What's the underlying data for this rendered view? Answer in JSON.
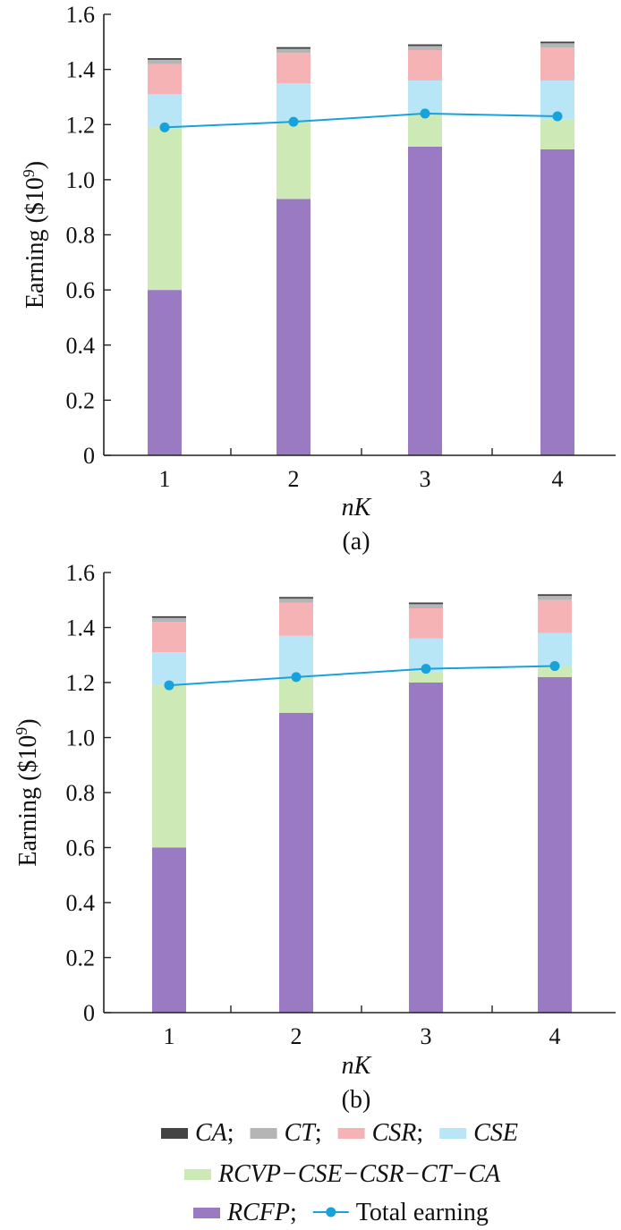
{
  "chart_data": [
    {
      "type": "bar",
      "stacked": true,
      "panel_label": "(a)",
      "categories": [
        "1",
        "2",
        "3",
        "4"
      ],
      "xlabel": "nK",
      "ylabel": "Earning ($10⁹)",
      "ylim": [
        0,
        1.6
      ],
      "yticks": [
        "0",
        "0.2",
        "0.4",
        "0.6",
        "0.8",
        "1.0",
        "1.2",
        "1.4",
        "1.6"
      ],
      "grid": false,
      "series": [
        {
          "name": "RCFP",
          "color": "#9b7ac4",
          "values": [
            0.6,
            0.93,
            1.12,
            1.11
          ]
        },
        {
          "name": "RCVP−CSE−CSR−CT−CA",
          "color": "#cde9b5",
          "values": [
            0.59,
            0.28,
            0.12,
            0.11
          ]
        },
        {
          "name": "CSE",
          "color": "#b9e6f7",
          "values": [
            0.12,
            0.14,
            0.12,
            0.14
          ]
        },
        {
          "name": "CSR",
          "color": "#f6b3b5",
          "values": [
            0.11,
            0.11,
            0.11,
            0.12
          ]
        },
        {
          "name": "CT",
          "color": "#b5b5b5",
          "values": [
            0.015,
            0.015,
            0.015,
            0.015
          ]
        },
        {
          "name": "CA",
          "color": "#444444",
          "values": [
            0.006,
            0.006,
            0.006,
            0.006
          ]
        }
      ],
      "line": {
        "name": "Total earning",
        "color": "#17a2dc",
        "values": [
          1.19,
          1.21,
          1.24,
          1.23
        ]
      }
    },
    {
      "type": "bar",
      "stacked": true,
      "panel_label": "(b)",
      "categories": [
        "1",
        "2",
        "3",
        "4"
      ],
      "xlabel": "nK",
      "ylabel": "Earning ($10⁹)",
      "ylim": [
        0,
        1.6
      ],
      "yticks": [
        "0",
        "0.2",
        "0.4",
        "0.6",
        "0.8",
        "1.0",
        "1.2",
        "1.4",
        "1.6"
      ],
      "grid": false,
      "series": [
        {
          "name": "RCFP",
          "color": "#9b7ac4",
          "values": [
            0.6,
            1.09,
            1.2,
            1.22
          ]
        },
        {
          "name": "RCVP−CSE−CSR−CT−CA",
          "color": "#cde9b5",
          "values": [
            0.59,
            0.13,
            0.04,
            0.04
          ]
        },
        {
          "name": "CSE",
          "color": "#b9e6f7",
          "values": [
            0.12,
            0.15,
            0.12,
            0.12
          ]
        },
        {
          "name": "CSR",
          "color": "#f6b3b5",
          "values": [
            0.11,
            0.12,
            0.11,
            0.12
          ]
        },
        {
          "name": "CT",
          "color": "#b5b5b5",
          "values": [
            0.015,
            0.015,
            0.015,
            0.015
          ]
        },
        {
          "name": "CA",
          "color": "#444444",
          "values": [
            0.006,
            0.006,
            0.006,
            0.006
          ]
        }
      ],
      "line": {
        "name": "Total earning",
        "color": "#17a2dc",
        "values": [
          1.19,
          1.22,
          1.25,
          1.26
        ]
      }
    }
  ],
  "legend": {
    "placement": "bottom",
    "rows": [
      [
        {
          "label": "CA",
          "sep": ";",
          "color": "#444444",
          "kind": "bar"
        },
        {
          "label": "CT",
          "sep": ";",
          "color": "#b5b5b5",
          "kind": "bar"
        },
        {
          "label": "CSR",
          "sep": ";",
          "color": "#f6b3b5",
          "kind": "bar"
        },
        {
          "label": "CSE",
          "sep": "",
          "color": "#b9e6f7",
          "kind": "bar"
        }
      ],
      [
        {
          "label": "RCVP−CSE−CSR−CT−CA",
          "sep": "",
          "color": "#cde9b5",
          "kind": "bar"
        }
      ],
      [
        {
          "label": "RCFP",
          "sep": ";",
          "color": "#9b7ac4",
          "kind": "bar"
        },
        {
          "label": "Total earning",
          "sep": "",
          "color": "#17a2dc",
          "kind": "line",
          "upright": true
        }
      ]
    ]
  }
}
